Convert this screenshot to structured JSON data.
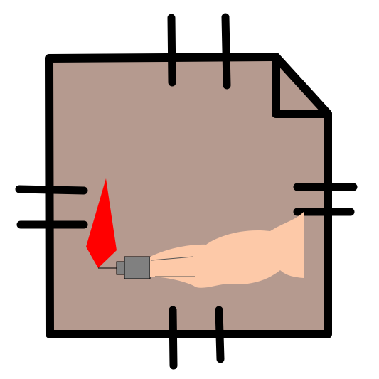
{
  "colors": {
    "background": "#ffffff",
    "document_fill": "#b59a8f",
    "outline": "#000000",
    "flame": "#ff0000",
    "arm_skin": "#fdc9a8",
    "connector_body": "#808080"
  },
  "icons": {
    "document": "document-icon",
    "folded_corner": "folded-corner-icon",
    "flame": "flame-icon",
    "arm": "arm-icon",
    "connector": "connector-plug-icon",
    "tick_marks": "tick-marks"
  }
}
